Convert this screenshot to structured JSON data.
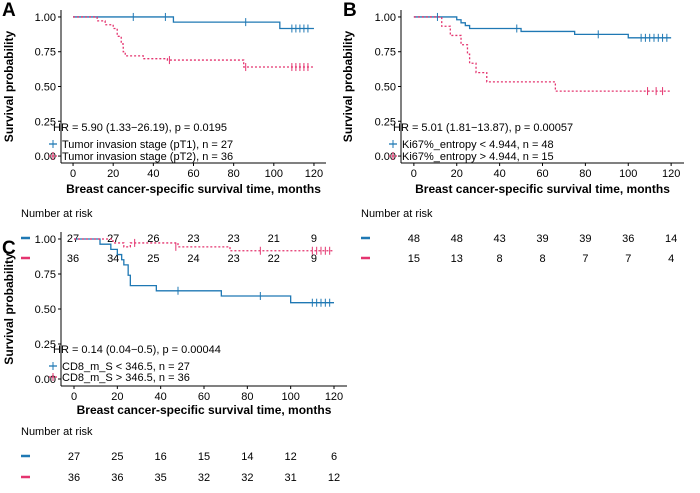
{
  "colors": {
    "group1": "#1f78b4",
    "group2": "#e4346f"
  },
  "chart_data": [
    {
      "panel": "A",
      "type": "line",
      "xlabel": "Breast cancer-specific survival time, months",
      "ylabel": "Survival probability",
      "xlim": [
        0,
        120
      ],
      "ylim": [
        0,
        1
      ],
      "xticks": [
        "0",
        "20",
        "40",
        "60",
        "80",
        "100",
        "120"
      ],
      "yticks": [
        "0.00",
        "0.25",
        "0.50",
        "0.75",
        "1.00"
      ],
      "annotation": "HR = 5.90 (1.33−26.19), p = 0.0195",
      "risk_title": "Number at risk",
      "series": [
        {
          "name": "Tumor invasion stage (pT1), n = 27",
          "style": "solid",
          "color_key": "group1",
          "steps": [
            [
              0,
              1
            ],
            [
              50,
              0.963
            ],
            [
              103,
              0.917
            ],
            [
              120,
              0.917
            ]
          ],
          "censor": [
            [
              30,
              1
            ],
            [
              46,
              1
            ],
            [
              86,
              0.963
            ],
            [
              109,
              0.917
            ],
            [
              111,
              0.917
            ],
            [
              113,
              0.917
            ],
            [
              115,
              0.917
            ],
            [
              117,
              0.917
            ]
          ],
          "risk": [
            "27",
            "27",
            "26",
            "23",
            "23",
            "21",
            "9"
          ]
        },
        {
          "name": "Tumor invasion stage (pT2), n = 36",
          "style": "dashed",
          "color_key": "group2",
          "steps": [
            [
              0,
              1
            ],
            [
              12,
              0.972
            ],
            [
              16,
              0.944
            ],
            [
              20,
              0.917
            ],
            [
              22,
              0.861
            ],
            [
              24,
              0.806
            ],
            [
              25,
              0.75
            ],
            [
              26,
              0.72
            ],
            [
              35,
              0.7
            ],
            [
              47,
              0.69
            ],
            [
              85,
              0.64
            ],
            [
              120,
              0.64
            ]
          ],
          "censor": [
            [
              48,
              0.69
            ],
            [
              86,
              0.64
            ],
            [
              109,
              0.64
            ],
            [
              111,
              0.64
            ],
            [
              113,
              0.64
            ],
            [
              115,
              0.64
            ],
            [
              117,
              0.64
            ]
          ],
          "risk": [
            "36",
            "34",
            "25",
            "24",
            "23",
            "22",
            "9"
          ]
        }
      ]
    },
    {
      "panel": "B",
      "type": "line",
      "xlabel": "Breast cancer-specific survival time, months",
      "ylabel": "Survival probability",
      "xlim": [
        0,
        120
      ],
      "ylim": [
        0,
        1
      ],
      "xticks": [
        "0",
        "20",
        "40",
        "60",
        "80",
        "100",
        "120"
      ],
      "yticks": [
        "0.00",
        "0.25",
        "0.50",
        "0.75",
        "1.00"
      ],
      "annotation": "HR = 5.01 (1.81−13.87), p = 0.00057",
      "risk_title": "Number at risk",
      "series": [
        {
          "name": "Ki67%_entropy < 4.944, n = 48",
          "style": "solid",
          "color_key": "group1",
          "steps": [
            [
              0,
              1
            ],
            [
              20,
              0.98
            ],
            [
              22,
              0.958
            ],
            [
              24,
              0.938
            ],
            [
              26,
              0.917
            ],
            [
              50,
              0.896
            ],
            [
              75,
              0.875
            ],
            [
              100,
              0.85
            ],
            [
              120,
              0.85
            ]
          ],
          "censor": [
            [
              11,
              1
            ],
            [
              48,
              0.917
            ],
            [
              86,
              0.875
            ],
            [
              106,
              0.85
            ],
            [
              108,
              0.85
            ],
            [
              110,
              0.85
            ],
            [
              112,
              0.85
            ],
            [
              114,
              0.85
            ],
            [
              116,
              0.85
            ],
            [
              118,
              0.85
            ]
          ],
          "risk": [
            "48",
            "48",
            "43",
            "39",
            "39",
            "36",
            "14"
          ]
        },
        {
          "name": "Ki67%_entropy > 4.944, n = 15",
          "style": "dashed",
          "color_key": "group2",
          "steps": [
            [
              0,
              1
            ],
            [
              13,
              0.933
            ],
            [
              17,
              0.867
            ],
            [
              22,
              0.8
            ],
            [
              25,
              0.733
            ],
            [
              26,
              0.667
            ],
            [
              29,
              0.6
            ],
            [
              34,
              0.533
            ],
            [
              66,
              0.467
            ],
            [
              120,
              0.467
            ]
          ],
          "censor": [
            [
              109,
              0.467
            ],
            [
              113,
              0.467
            ],
            [
              116,
              0.467
            ]
          ],
          "risk": [
            "15",
            "13",
            "8",
            "8",
            "7",
            "7",
            "4"
          ]
        }
      ]
    },
    {
      "panel": "C",
      "type": "line",
      "xlabel": "Breast cancer-specific survival time, months",
      "ylabel": "Survival probability",
      "xlim": [
        0,
        120
      ],
      "ylim": [
        0,
        1
      ],
      "xticks": [
        "0",
        "20",
        "40",
        "60",
        "80",
        "100",
        "120"
      ],
      "yticks": [
        "0.00",
        "0.25",
        "0.50",
        "0.75",
        "1.00"
      ],
      "annotation": "HR = 0.14 (0.04−0.5), p = 0.00044",
      "risk_title": "Number at risk",
      "series": [
        {
          "name": "CD8_m_S < 346.5, n = 27",
          "style": "solid",
          "color_key": "group1",
          "steps": [
            [
              0,
              1
            ],
            [
              12,
              0.963
            ],
            [
              17,
              0.926
            ],
            [
              20,
              0.889
            ],
            [
              22,
              0.852
            ],
            [
              23,
              0.815
            ],
            [
              25,
              0.741
            ],
            [
              26,
              0.667
            ],
            [
              38,
              0.63
            ],
            [
              68,
              0.593
            ],
            [
              100,
              0.545
            ],
            [
              120,
              0.545
            ]
          ],
          "censor": [
            [
              48,
              0.63
            ],
            [
              86,
              0.593
            ],
            [
              110,
              0.545
            ],
            [
              112,
              0.545
            ],
            [
              114,
              0.545
            ],
            [
              116,
              0.545
            ],
            [
              118,
              0.545
            ]
          ],
          "risk": [
            "27",
            "25",
            "16",
            "15",
            "14",
            "12",
            "6"
          ]
        },
        {
          "name": "CD8_m_S > 346.5, n = 36",
          "style": "dashed",
          "color_key": "group2",
          "steps": [
            [
              0,
              1
            ],
            [
              18,
              0.972
            ],
            [
              23,
              0.944
            ],
            [
              26,
              0.972
            ],
            [
              26,
              0.972
            ],
            [
              48,
              0.944
            ],
            [
              72,
              0.916
            ],
            [
              120,
              0.916
            ]
          ],
          "censor": [
            [
              28,
              0.972
            ],
            [
              47,
              0.944
            ],
            [
              86,
              0.916
            ],
            [
              110,
              0.916
            ],
            [
              112,
              0.916
            ],
            [
              114,
              0.916
            ],
            [
              116,
              0.916
            ],
            [
              118,
              0.916
            ]
          ],
          "risk": [
            "36",
            "36",
            "35",
            "32",
            "32",
            "31",
            "12"
          ]
        }
      ]
    }
  ]
}
